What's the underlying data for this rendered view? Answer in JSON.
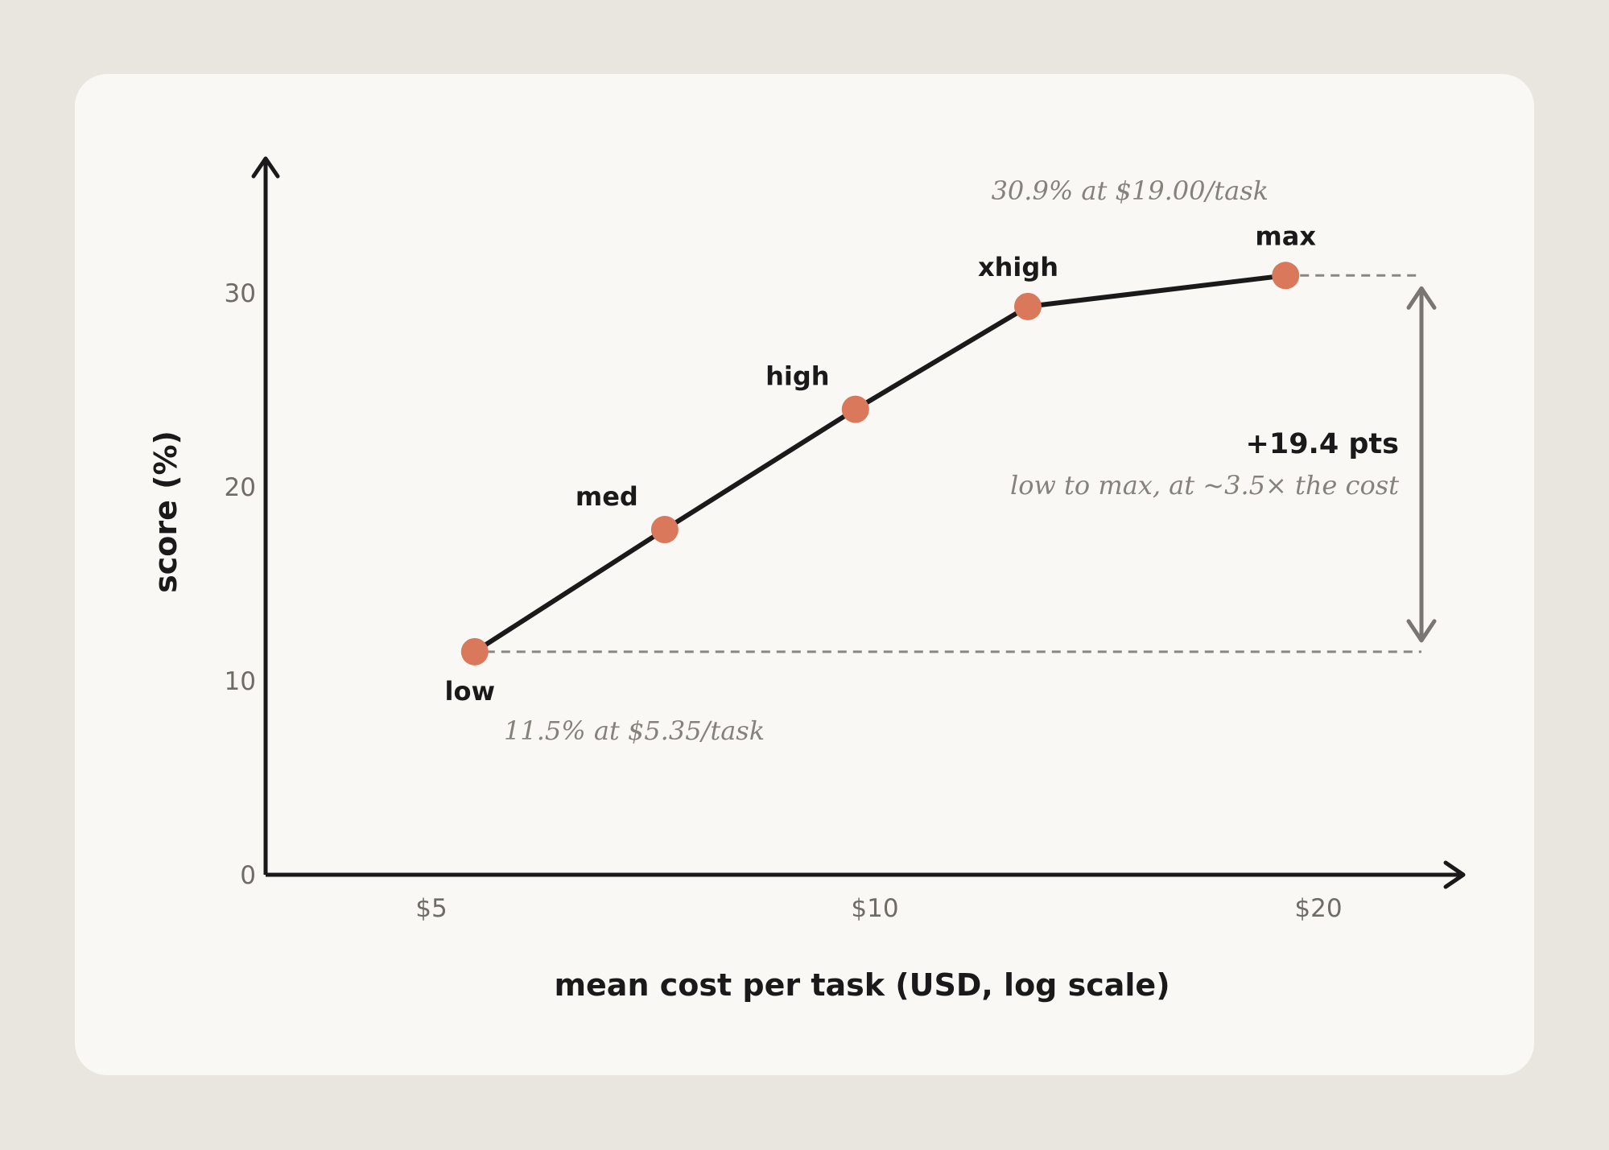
{
  "chart_data": {
    "type": "line",
    "x_scale": "log",
    "xlabel": "mean cost per task (USD, log scale)",
    "ylabel": "score (%)",
    "x_ticks": [
      {
        "value": 5,
        "label": "$5"
      },
      {
        "value": 10,
        "label": "$10"
      },
      {
        "value": 20,
        "label": "$20"
      }
    ],
    "y_ticks": [
      {
        "value": 0,
        "label": "0"
      },
      {
        "value": 10,
        "label": "10"
      },
      {
        "value": 20,
        "label": "20"
      },
      {
        "value": 30,
        "label": "30"
      }
    ],
    "xlim": [
      3.5,
      24
    ],
    "ylim": [
      0,
      37
    ],
    "points": [
      {
        "label": "low",
        "x": 5.35,
        "y": 11.5
      },
      {
        "label": "med",
        "x": 7.2,
        "y": 17.8
      },
      {
        "label": "high",
        "x": 9.7,
        "y": 24.0
      },
      {
        "label": "xhigh",
        "x": 12.7,
        "y": 29.3
      },
      {
        "label": "max",
        "x": 19.0,
        "y": 30.9
      }
    ],
    "annotations": {
      "low_note": "11.5% at $5.35/task",
      "max_note": "30.9% at $19.00/task",
      "delta_value": "+19.4 pts",
      "delta_note": "low to max, at ~3.5× the cost"
    },
    "grid": false,
    "colors": {
      "line": "#1a1a1a",
      "point": "#d9785a",
      "guide": "#8a8782",
      "axis": "#1a1a1a"
    }
  }
}
